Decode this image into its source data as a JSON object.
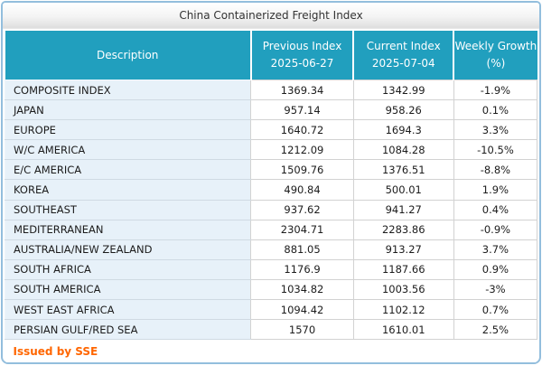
{
  "panel": {
    "title": "China Containerized Freight Index",
    "footer_note": "Issued by SSE"
  },
  "table": {
    "columns": [
      {
        "label": "Description",
        "sub": ""
      },
      {
        "label": "Previous Index",
        "sub": "2025-06-27"
      },
      {
        "label": "Current Index",
        "sub": "2025-07-04"
      },
      {
        "label": "Weekly Growth",
        "sub": "(%)"
      }
    ],
    "rows": [
      {
        "description": "COMPOSITE INDEX",
        "previous_index": "1369.34",
        "current_index": "1342.99",
        "weekly_growth": "-1.9%"
      },
      {
        "description": "JAPAN",
        "previous_index": "957.14",
        "current_index": "958.26",
        "weekly_growth": "0.1%"
      },
      {
        "description": "EUROPE",
        "previous_index": "1640.72",
        "current_index": "1694.3",
        "weekly_growth": "3.3%"
      },
      {
        "description": "W/C AMERICA",
        "previous_index": "1212.09",
        "current_index": "1084.28",
        "weekly_growth": "-10.5%"
      },
      {
        "description": "E/C AMERICA",
        "previous_index": "1509.76",
        "current_index": "1376.51",
        "weekly_growth": "-8.8%"
      },
      {
        "description": "KOREA",
        "previous_index": "490.84",
        "current_index": "500.01",
        "weekly_growth": "1.9%"
      },
      {
        "description": "SOUTHEAST",
        "previous_index": "937.62",
        "current_index": "941.27",
        "weekly_growth": "0.4%"
      },
      {
        "description": "MEDITERRANEAN",
        "previous_index": "2304.71",
        "current_index": "2283.86",
        "weekly_growth": "-0.9%"
      },
      {
        "description": "AUSTRALIA/NEW ZEALAND",
        "previous_index": "881.05",
        "current_index": "913.27",
        "weekly_growth": "3.7%"
      },
      {
        "description": "SOUTH AFRICA",
        "previous_index": "1176.9",
        "current_index": "1187.66",
        "weekly_growth": "0.9%"
      },
      {
        "description": "SOUTH AMERICA",
        "previous_index": "1034.82",
        "current_index": "1003.56",
        "weekly_growth": "-3%"
      },
      {
        "description": "WEST EAST AFRICA",
        "previous_index": "1094.42",
        "current_index": "1102.12",
        "weekly_growth": "0.7%"
      },
      {
        "description": "PERSIAN GULF/RED SEA",
        "previous_index": "1570",
        "current_index": "1610.01",
        "weekly_growth": "2.5%"
      }
    ]
  },
  "colors": {
    "header_background": "#219fbe",
    "header_text": "#ffffff",
    "description_cell_background": "#e7f1f9",
    "value_cell_background": "#ffffff",
    "panel_border": "#93bedd",
    "footer_text": "#ff6600"
  }
}
